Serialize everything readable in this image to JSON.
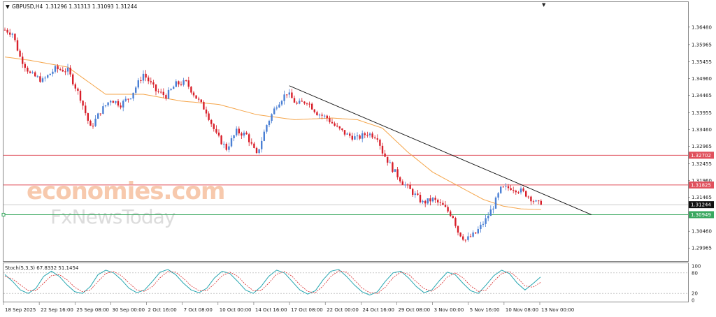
{
  "header": {
    "symbol": "GBPUSD,H4",
    "ohlc": "1.31296 1.31313 1.31093 1.31244"
  },
  "watermark": {
    "line1": "economies.com",
    "line2": "FxNewsToday"
  },
  "stoch": {
    "label": "Stoch(5,3,3) 67.8332 51.1454",
    "ticks": [
      "100",
      "80",
      "20",
      "0"
    ]
  },
  "colors": {
    "bull": "#4a7fd4",
    "bear": "#d81f2a",
    "ma": "#f5a54a",
    "trendline": "#111111",
    "resistance": "#e0505c",
    "support": "#3aa860",
    "current": "#999999",
    "stoch_main": "#26a6b0",
    "stoch_signal": "#d82a2a"
  },
  "chart_data": {
    "type": "candlestick",
    "title": "GBPUSD,H4",
    "ylim": [
      1.2962,
      1.3695
    ],
    "y_ticks": [
      "1.36480",
      "1.35965",
      "1.35455",
      "1.34960",
      "1.34465",
      "1.33955",
      "1.33460",
      "1.32965",
      "1.32455",
      "1.31960",
      "1.31465",
      "1.30460",
      "1.29965"
    ],
    "x_ticks": [
      "18 Sep 2025",
      "22 Sep 16:00",
      "25 Sep 08:00",
      "30 Sep 00:00",
      "2 Oct 16:00",
      "7 Oct 08:00",
      "10 Oct 00:00",
      "14 Oct 16:00",
      "17 Oct 08:00",
      "22 Oct 00:00",
      "24 Oct 16:00",
      "29 Oct 08:00",
      "3 Nov 00:00",
      "5 Nov 16:00",
      "10 Nov 08:00",
      "13 Nov 00:00"
    ],
    "price_path": [
      [
        0,
        1.364
      ],
      [
        3,
        1.363
      ],
      [
        6,
        1.356
      ],
      [
        10,
        1.351
      ],
      [
        15,
        1.349
      ],
      [
        20,
        1.3525
      ],
      [
        25,
        1.352
      ],
      [
        30,
        1.344
      ],
      [
        34,
        1.335
      ],
      [
        38,
        1.34
      ],
      [
        42,
        1.3435
      ],
      [
        46,
        1.342
      ],
      [
        50,
        1.3445
      ],
      [
        55,
        1.351
      ],
      [
        60,
        1.346
      ],
      [
        64,
        1.3445
      ],
      [
        68,
        1.348
      ],
      [
        72,
        1.3485
      ],
      [
        76,
        1.344
      ],
      [
        80,
        1.34
      ],
      [
        84,
        1.333
      ],
      [
        88,
        1.329
      ],
      [
        92,
        1.334
      ],
      [
        96,
        1.333
      ],
      [
        100,
        1.327
      ],
      [
        104,
        1.336
      ],
      [
        108,
        1.342
      ],
      [
        112,
        1.3455
      ],
      [
        116,
        1.342
      ],
      [
        120,
        1.343
      ],
      [
        124,
        1.3395
      ],
      [
        128,
        1.338
      ],
      [
        132,
        1.335
      ],
      [
        136,
        1.333
      ],
      [
        140,
        1.332
      ],
      [
        144,
        1.3335
      ],
      [
        148,
        1.3325
      ],
      [
        150,
        1.328
      ],
      [
        154,
        1.323
      ],
      [
        158,
        1.319
      ],
      [
        162,
        1.316
      ],
      [
        166,
        1.313
      ],
      [
        170,
        1.314
      ],
      [
        174,
        1.312
      ],
      [
        178,
        1.309
      ],
      [
        180,
        1.3045
      ],
      [
        183,
        1.302
      ],
      [
        187,
        1.304
      ],
      [
        191,
        1.308
      ],
      [
        194,
        1.312
      ],
      [
        197,
        1.317
      ],
      [
        201,
        1.3175
      ],
      [
        205,
        1.3165
      ],
      [
        208,
        1.315
      ],
      [
        211,
        1.313
      ],
      [
        213,
        1.3124
      ]
    ],
    "ma_path": [
      [
        0,
        1.356
      ],
      [
        10,
        1.355
      ],
      [
        25,
        1.353
      ],
      [
        40,
        1.345
      ],
      [
        55,
        1.345
      ],
      [
        70,
        1.343
      ],
      [
        85,
        1.342
      ],
      [
        100,
        1.339
      ],
      [
        115,
        1.3375
      ],
      [
        130,
        1.338
      ],
      [
        140,
        1.3375
      ],
      [
        150,
        1.335
      ],
      [
        160,
        1.328
      ],
      [
        170,
        1.322
      ],
      [
        180,
        1.318
      ],
      [
        190,
        1.314
      ],
      [
        198,
        1.312
      ],
      [
        205,
        1.3112
      ],
      [
        213,
        1.311
      ]
    ],
    "levels": {
      "resistance_1": "1.32702",
      "resistance_2": "1.31825",
      "current": "1.31244",
      "support": "1.30949"
    },
    "trendline": [
      [
        113,
        1.3475
      ],
      [
        233,
        1.3095
      ]
    ],
    "stoch_main": [
      75,
      55,
      30,
      20,
      35,
      70,
      85,
      70,
      45,
      25,
      20,
      40,
      75,
      88,
      80,
      60,
      35,
      22,
      30,
      55,
      82,
      90,
      75,
      50,
      30,
      22,
      35,
      65,
      85,
      78,
      55,
      30,
      20,
      40,
      70,
      88,
      80,
      55,
      30,
      18,
      28,
      60,
      85,
      90,
      70,
      45,
      25,
      15,
      25,
      55,
      80,
      85,
      65,
      40,
      22,
      30,
      58,
      82,
      75,
      50,
      28,
      20,
      45,
      72,
      88,
      78,
      50,
      30,
      48,
      68
    ],
    "stoch_signal": [
      70,
      62,
      45,
      28,
      28,
      50,
      72,
      75,
      60,
      38,
      25,
      30,
      55,
      78,
      84,
      72,
      50,
      30,
      26,
      40,
      66,
      84,
      82,
      64,
      42,
      28,
      28,
      48,
      72,
      82,
      70,
      46,
      28,
      28,
      50,
      76,
      84,
      70,
      45,
      26,
      22,
      42,
      70,
      86,
      82,
      60,
      36,
      22,
      20,
      38,
      66,
      82,
      76,
      54,
      34,
      26,
      42,
      68,
      80,
      66,
      42,
      26,
      30,
      56,
      78,
      84,
      66,
      42,
      38,
      52
    ]
  }
}
